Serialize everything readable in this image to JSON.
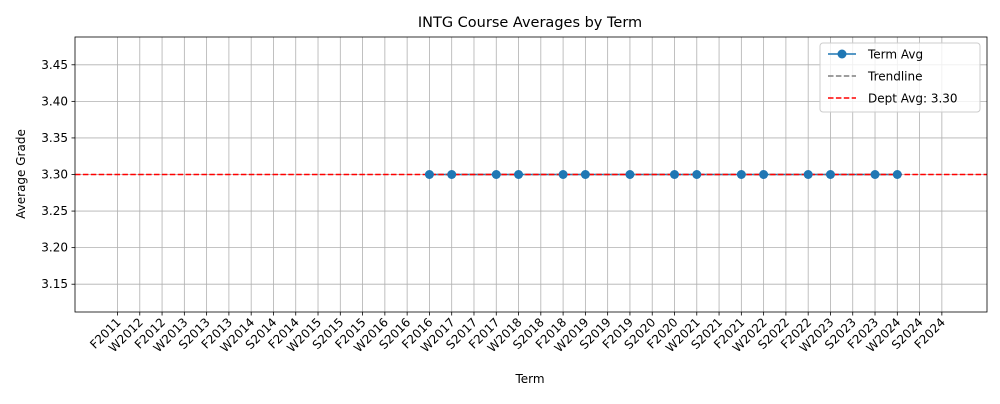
{
  "chart_data": {
    "type": "line",
    "title": "INTG Course Averages by Term",
    "xlabel": "Term",
    "ylabel": "Average Grade",
    "categories": [
      "F2011",
      "W2012",
      "F2012",
      "W2013",
      "S2013",
      "F2013",
      "W2014",
      "S2014",
      "F2014",
      "W2015",
      "S2015",
      "F2015",
      "W2016",
      "S2016",
      "F2016",
      "W2017",
      "S2017",
      "F2017",
      "W2018",
      "S2018",
      "F2018",
      "W2019",
      "S2019",
      "F2019",
      "S2020",
      "F2020",
      "W2021",
      "S2021",
      "F2021",
      "W2022",
      "S2022",
      "F2022",
      "W2023",
      "S2023",
      "F2023",
      "W2024",
      "S2024",
      "F2024"
    ],
    "ylim": [
      3.112,
      3.488
    ],
    "yticks": [
      "3.15",
      "3.20",
      "3.25",
      "3.30",
      "3.35",
      "3.40",
      "3.45"
    ],
    "grid": true,
    "legend_position": "upper right",
    "series": [
      {
        "name": "Term Avg",
        "color": "#1f77b4",
        "style": "solid-with-circle-markers",
        "points": [
          {
            "x": "F2016",
            "y": 3.3
          },
          {
            "x": "W2017",
            "y": 3.3
          },
          {
            "x": "F2017",
            "y": 3.3
          },
          {
            "x": "W2018",
            "y": 3.3
          },
          {
            "x": "F2018",
            "y": 3.3
          },
          {
            "x": "W2019",
            "y": 3.3
          },
          {
            "x": "F2019",
            "y": 3.3
          },
          {
            "x": "F2020",
            "y": 3.3
          },
          {
            "x": "W2021",
            "y": 3.3
          },
          {
            "x": "F2021",
            "y": 3.3
          },
          {
            "x": "W2022",
            "y": 3.3
          },
          {
            "x": "F2022",
            "y": 3.3
          },
          {
            "x": "W2023",
            "y": 3.3
          },
          {
            "x": "F2023",
            "y": 3.3
          },
          {
            "x": "W2024",
            "y": 3.3
          }
        ]
      },
      {
        "name": "Trendline",
        "color": "#7f7f7f",
        "style": "dashed",
        "points": [
          {
            "x": "F2016",
            "y": 3.3
          },
          {
            "x": "W2024",
            "y": 3.3
          }
        ]
      },
      {
        "name": "Dept Avg: 3.30",
        "color": "#ff0000",
        "style": "dashed-horizontal",
        "y": 3.3
      }
    ]
  }
}
